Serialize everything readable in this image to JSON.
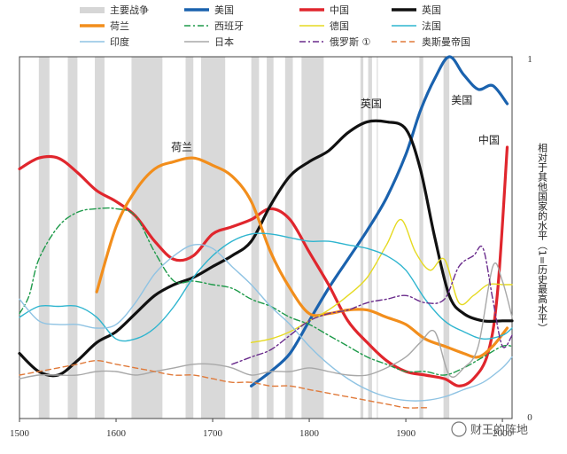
{
  "chart_data": {
    "type": "line",
    "x_range": [
      1500,
      2010
    ],
    "y_range": [
      0,
      1
    ],
    "xticks": [
      1500,
      1600,
      1700,
      1800,
      1900,
      2000
    ],
    "xtick_labels": [
      "1500",
      "1600",
      "1700",
      "1800",
      "1900",
      "2000"
    ],
    "ytick_labels": {
      "top": "1",
      "bottom": "0"
    },
    "ylabel": "相对于其他国家的水平（1=历史最高水平）",
    "legend": [
      {
        "name": "主要战争",
        "color": "#d6d6d6",
        "style": "band"
      },
      {
        "name": "美国",
        "color": "#1a62ae",
        "style": "solid"
      },
      {
        "name": "中国",
        "color": "#e0262d",
        "style": "solid"
      },
      {
        "name": "英国",
        "color": "#111111",
        "style": "solid"
      },
      {
        "name": "荷兰",
        "color": "#f28e1c",
        "style": "solid"
      },
      {
        "name": "西班牙",
        "color": "#1e9a4a",
        "style": "dashdot"
      },
      {
        "name": "德国",
        "color": "#e6da22",
        "style": "solid"
      },
      {
        "name": "法国",
        "color": "#2fb5cf",
        "style": "solid"
      },
      {
        "name": "印度",
        "color": "#8fc3e3",
        "style": "solid"
      },
      {
        "name": "日本",
        "color": "#a8a8a8",
        "style": "solid"
      },
      {
        "name": "俄罗斯 ①",
        "color": "#6a2c8c",
        "style": "dashdot"
      },
      {
        "name": "奥斯曼帝国",
        "color": "#e07a3a",
        "style": "dashed"
      }
    ],
    "war_periods": [
      [
        1520,
        1531
      ],
      [
        1550,
        1560
      ],
      [
        1578,
        1588
      ],
      [
        1616,
        1648
      ],
      [
        1672,
        1680
      ],
      [
        1688,
        1713
      ],
      [
        1740,
        1748
      ],
      [
        1756,
        1763
      ],
      [
        1775,
        1783
      ],
      [
        1792,
        1815
      ],
      [
        1853,
        1856
      ],
      [
        1861,
        1865
      ],
      [
        1870,
        1871
      ],
      [
        1914,
        1918
      ],
      [
        1939,
        1945
      ]
    ],
    "series": [
      {
        "name": "美国",
        "points": [
          [
            1740,
            0.09
          ],
          [
            1760,
            0.13
          ],
          [
            1780,
            0.18
          ],
          [
            1800,
            0.27
          ],
          [
            1820,
            0.36
          ],
          [
            1840,
            0.44
          ],
          [
            1860,
            0.52
          ],
          [
            1880,
            0.61
          ],
          [
            1900,
            0.73
          ],
          [
            1915,
            0.85
          ],
          [
            1930,
            0.94
          ],
          [
            1945,
            1.0
          ],
          [
            1960,
            0.95
          ],
          [
            1975,
            0.91
          ],
          [
            1990,
            0.92
          ],
          [
            2005,
            0.87
          ]
        ]
      },
      {
        "name": "中国",
        "points": [
          [
            1500,
            0.69
          ],
          [
            1520,
            0.72
          ],
          [
            1540,
            0.72
          ],
          [
            1560,
            0.68
          ],
          [
            1580,
            0.63
          ],
          [
            1600,
            0.6
          ],
          [
            1620,
            0.56
          ],
          [
            1640,
            0.49
          ],
          [
            1660,
            0.44
          ],
          [
            1680,
            0.45
          ],
          [
            1700,
            0.51
          ],
          [
            1720,
            0.53
          ],
          [
            1740,
            0.55
          ],
          [
            1760,
            0.58
          ],
          [
            1780,
            0.55
          ],
          [
            1800,
            0.46
          ],
          [
            1820,
            0.37
          ],
          [
            1840,
            0.27
          ],
          [
            1860,
            0.21
          ],
          [
            1880,
            0.16
          ],
          [
            1900,
            0.13
          ],
          [
            1920,
            0.12
          ],
          [
            1940,
            0.11
          ],
          [
            1955,
            0.09
          ],
          [
            1970,
            0.11
          ],
          [
            1985,
            0.18
          ],
          [
            1995,
            0.35
          ],
          [
            2005,
            0.75
          ]
        ]
      },
      {
        "name": "英国",
        "points": [
          [
            1500,
            0.18
          ],
          [
            1520,
            0.13
          ],
          [
            1540,
            0.12
          ],
          [
            1560,
            0.16
          ],
          [
            1580,
            0.21
          ],
          [
            1600,
            0.24
          ],
          [
            1620,
            0.29
          ],
          [
            1640,
            0.34
          ],
          [
            1660,
            0.37
          ],
          [
            1680,
            0.39
          ],
          [
            1700,
            0.42
          ],
          [
            1720,
            0.45
          ],
          [
            1740,
            0.49
          ],
          [
            1760,
            0.59
          ],
          [
            1780,
            0.67
          ],
          [
            1800,
            0.71
          ],
          [
            1820,
            0.74
          ],
          [
            1840,
            0.79
          ],
          [
            1860,
            0.82
          ],
          [
            1880,
            0.82
          ],
          [
            1900,
            0.8
          ],
          [
            1915,
            0.69
          ],
          [
            1930,
            0.5
          ],
          [
            1945,
            0.34
          ],
          [
            1960,
            0.29
          ],
          [
            1980,
            0.27
          ],
          [
            2000,
            0.27
          ],
          [
            2010,
            0.27
          ]
        ]
      },
      {
        "name": "荷兰",
        "points": [
          [
            1580,
            0.35
          ],
          [
            1600,
            0.53
          ],
          [
            1620,
            0.63
          ],
          [
            1640,
            0.69
          ],
          [
            1660,
            0.71
          ],
          [
            1680,
            0.72
          ],
          [
            1700,
            0.7
          ],
          [
            1720,
            0.67
          ],
          [
            1740,
            0.6
          ],
          [
            1760,
            0.46
          ],
          [
            1780,
            0.36
          ],
          [
            1800,
            0.29
          ],
          [
            1820,
            0.29
          ],
          [
            1840,
            0.3
          ],
          [
            1860,
            0.3
          ],
          [
            1880,
            0.28
          ],
          [
            1900,
            0.26
          ],
          [
            1920,
            0.22
          ],
          [
            1940,
            0.2
          ],
          [
            1960,
            0.18
          ],
          [
            1975,
            0.17
          ],
          [
            1990,
            0.2
          ],
          [
            2005,
            0.25
          ]
        ]
      },
      {
        "name": "西班牙",
        "points": [
          [
            1500,
            0.29
          ],
          [
            1510,
            0.34
          ],
          [
            1520,
            0.44
          ],
          [
            1540,
            0.53
          ],
          [
            1560,
            0.57
          ],
          [
            1580,
            0.58
          ],
          [
            1600,
            0.58
          ],
          [
            1620,
            0.56
          ],
          [
            1640,
            0.46
          ],
          [
            1660,
            0.38
          ],
          [
            1680,
            0.38
          ],
          [
            1700,
            0.37
          ],
          [
            1720,
            0.36
          ],
          [
            1740,
            0.33
          ],
          [
            1760,
            0.31
          ],
          [
            1780,
            0.28
          ],
          [
            1800,
            0.26
          ],
          [
            1820,
            0.23
          ],
          [
            1840,
            0.2
          ],
          [
            1860,
            0.17
          ],
          [
            1880,
            0.15
          ],
          [
            1900,
            0.13
          ],
          [
            1920,
            0.13
          ],
          [
            1940,
            0.12
          ],
          [
            1960,
            0.14
          ],
          [
            1980,
            0.17
          ],
          [
            2000,
            0.2
          ],
          [
            2010,
            0.2
          ]
        ]
      },
      {
        "name": "德国",
        "points": [
          [
            1740,
            0.21
          ],
          [
            1760,
            0.22
          ],
          [
            1780,
            0.24
          ],
          [
            1800,
            0.27
          ],
          [
            1820,
            0.3
          ],
          [
            1840,
            0.34
          ],
          [
            1860,
            0.39
          ],
          [
            1880,
            0.48
          ],
          [
            1895,
            0.55
          ],
          [
            1910,
            0.46
          ],
          [
            1925,
            0.41
          ],
          [
            1940,
            0.44
          ],
          [
            1955,
            0.32
          ],
          [
            1970,
            0.34
          ],
          [
            1985,
            0.37
          ],
          [
            2000,
            0.37
          ],
          [
            2010,
            0.37
          ]
        ]
      },
      {
        "name": "法国",
        "points": [
          [
            1500,
            0.28
          ],
          [
            1520,
            0.31
          ],
          [
            1540,
            0.31
          ],
          [
            1560,
            0.31
          ],
          [
            1580,
            0.28
          ],
          [
            1600,
            0.22
          ],
          [
            1620,
            0.22
          ],
          [
            1640,
            0.25
          ],
          [
            1660,
            0.31
          ],
          [
            1680,
            0.39
          ],
          [
            1700,
            0.45
          ],
          [
            1720,
            0.49
          ],
          [
            1740,
            0.51
          ],
          [
            1760,
            0.51
          ],
          [
            1780,
            0.5
          ],
          [
            1800,
            0.49
          ],
          [
            1820,
            0.49
          ],
          [
            1840,
            0.48
          ],
          [
            1860,
            0.47
          ],
          [
            1880,
            0.45
          ],
          [
            1900,
            0.41
          ],
          [
            1920,
            0.33
          ],
          [
            1940,
            0.27
          ],
          [
            1960,
            0.24
          ],
          [
            1980,
            0.22
          ],
          [
            2000,
            0.23
          ],
          [
            2010,
            0.25
          ]
        ]
      },
      {
        "name": "印度",
        "points": [
          [
            1500,
            0.33
          ],
          [
            1520,
            0.27
          ],
          [
            1540,
            0.26
          ],
          [
            1560,
            0.26
          ],
          [
            1580,
            0.25
          ],
          [
            1600,
            0.26
          ],
          [
            1620,
            0.32
          ],
          [
            1640,
            0.4
          ],
          [
            1660,
            0.45
          ],
          [
            1680,
            0.48
          ],
          [
            1700,
            0.47
          ],
          [
            1720,
            0.42
          ],
          [
            1740,
            0.37
          ],
          [
            1760,
            0.31
          ],
          [
            1780,
            0.26
          ],
          [
            1800,
            0.2
          ],
          [
            1820,
            0.15
          ],
          [
            1840,
            0.11
          ],
          [
            1860,
            0.08
          ],
          [
            1880,
            0.06
          ],
          [
            1900,
            0.05
          ],
          [
            1920,
            0.05
          ],
          [
            1940,
            0.06
          ],
          [
            1960,
            0.08
          ],
          [
            1980,
            0.1
          ],
          [
            2000,
            0.14
          ],
          [
            2010,
            0.17
          ]
        ]
      },
      {
        "name": "日本",
        "points": [
          [
            1500,
            0.11
          ],
          [
            1520,
            0.12
          ],
          [
            1540,
            0.12
          ],
          [
            1560,
            0.12
          ],
          [
            1580,
            0.13
          ],
          [
            1600,
            0.13
          ],
          [
            1620,
            0.12
          ],
          [
            1640,
            0.13
          ],
          [
            1660,
            0.14
          ],
          [
            1680,
            0.15
          ],
          [
            1700,
            0.15
          ],
          [
            1720,
            0.14
          ],
          [
            1740,
            0.12
          ],
          [
            1760,
            0.13
          ],
          [
            1780,
            0.13
          ],
          [
            1800,
            0.14
          ],
          [
            1820,
            0.13
          ],
          [
            1840,
            0.12
          ],
          [
            1860,
            0.12
          ],
          [
            1880,
            0.14
          ],
          [
            1900,
            0.17
          ],
          [
            1915,
            0.21
          ],
          [
            1930,
            0.24
          ],
          [
            1945,
            0.12
          ],
          [
            1960,
            0.14
          ],
          [
            1975,
            0.2
          ],
          [
            1990,
            0.42
          ],
          [
            2000,
            0.38
          ],
          [
            2010,
            0.28
          ]
        ]
      },
      {
        "name": "俄罗斯 ①",
        "points": [
          [
            1720,
            0.15
          ],
          [
            1740,
            0.17
          ],
          [
            1760,
            0.19
          ],
          [
            1780,
            0.23
          ],
          [
            1800,
            0.27
          ],
          [
            1820,
            0.29
          ],
          [
            1840,
            0.3
          ],
          [
            1860,
            0.32
          ],
          [
            1880,
            0.33
          ],
          [
            1900,
            0.34
          ],
          [
            1920,
            0.32
          ],
          [
            1940,
            0.33
          ],
          [
            1955,
            0.42
          ],
          [
            1970,
            0.45
          ],
          [
            1980,
            0.47
          ],
          [
            1990,
            0.33
          ],
          [
            2000,
            0.2
          ],
          [
            2010,
            0.23
          ]
        ]
      },
      {
        "name": "奥斯曼帝国",
        "points": [
          [
            1500,
            0.12
          ],
          [
            1520,
            0.13
          ],
          [
            1540,
            0.14
          ],
          [
            1560,
            0.15
          ],
          [
            1580,
            0.16
          ],
          [
            1600,
            0.15
          ],
          [
            1620,
            0.14
          ],
          [
            1640,
            0.13
          ],
          [
            1660,
            0.12
          ],
          [
            1680,
            0.12
          ],
          [
            1700,
            0.11
          ],
          [
            1720,
            0.1
          ],
          [
            1740,
            0.1
          ],
          [
            1760,
            0.09
          ],
          [
            1780,
            0.09
          ],
          [
            1800,
            0.08
          ],
          [
            1820,
            0.07
          ],
          [
            1840,
            0.06
          ],
          [
            1860,
            0.05
          ],
          [
            1880,
            0.04
          ],
          [
            1900,
            0.03
          ],
          [
            1915,
            0.03
          ],
          [
            1922,
            0.03
          ]
        ]
      }
    ],
    "annotations": [
      {
        "text": "荷兰",
        "x": 1668,
        "y": 0.74
      },
      {
        "text": "英国",
        "x": 1864,
        "y": 0.86
      },
      {
        "text": "美国",
        "x": 1958,
        "y": 0.87
      },
      {
        "text": "中国",
        "x": 1986,
        "y": 0.76
      }
    ]
  },
  "watermark": {
    "text": "财王的阵地"
  }
}
